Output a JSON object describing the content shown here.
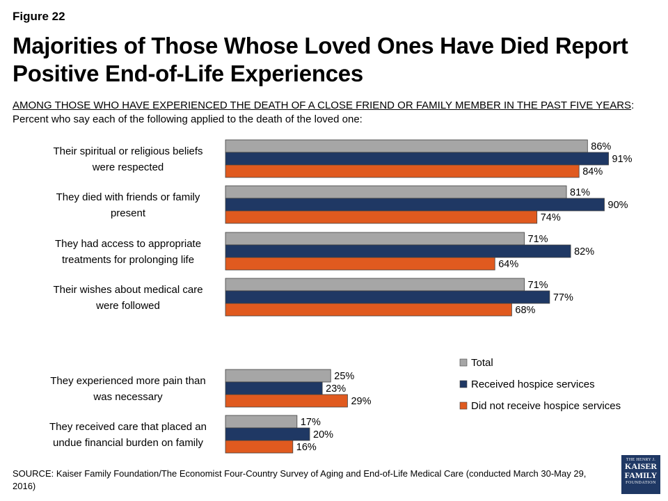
{
  "figure_label": "Figure 22",
  "title_line1": "Majorities of Those Whose Loved Ones Have Died Report",
  "title_line2": "Positive End-of-Life Experiences",
  "subtitle_underlined": "AMONG THOSE WHO HAVE EXPERIENCED THE DEATH OF A CLOSE FRIEND OR FAMILY MEMBER IN THE PAST FIVE YEARS",
  "subtitle_colon": ":",
  "subtitle_line2": "Percent who say each of the following applied to the death of the loved one:",
  "source": "SOURCE: Kaiser Family Foundation/The Economist Four-Country Survey of Aging and End-of-Life Medical Care (conducted March 30-May 29, 2016)",
  "logo": {
    "top": "THE HENRY J.",
    "line1": "KAISER",
    "line2": "FAMILY",
    "bottom": "FOUNDATION"
  },
  "chart_data": {
    "type": "bar",
    "orientation": "horizontal",
    "categories": [
      [
        "Their spiritual or religious beliefs",
        "were respected"
      ],
      [
        "They died with friends or family",
        "present"
      ],
      [
        "They had access to appropriate",
        "treatments for prolonging life"
      ],
      [
        "Their wishes about medical care",
        "were followed"
      ],
      [
        "They experienced more pain than",
        "was necessary"
      ],
      [
        "They received care that placed an",
        "undue financial burden on family"
      ]
    ],
    "series": [
      {
        "name": "Total",
        "color": "#a6a6a6",
        "values": [
          86,
          81,
          71,
          71,
          25,
          17
        ]
      },
      {
        "name": "Received hospice services",
        "color": "#1f3864",
        "values": [
          91,
          90,
          82,
          77,
          23,
          20
        ]
      },
      {
        "name": "Did not receive hospice services",
        "color": "#e05a1f",
        "values": [
          84,
          74,
          64,
          68,
          29,
          16
        ]
      }
    ],
    "value_suffix": "%",
    "xlim": [
      0,
      100
    ],
    "legend_position": "right"
  }
}
